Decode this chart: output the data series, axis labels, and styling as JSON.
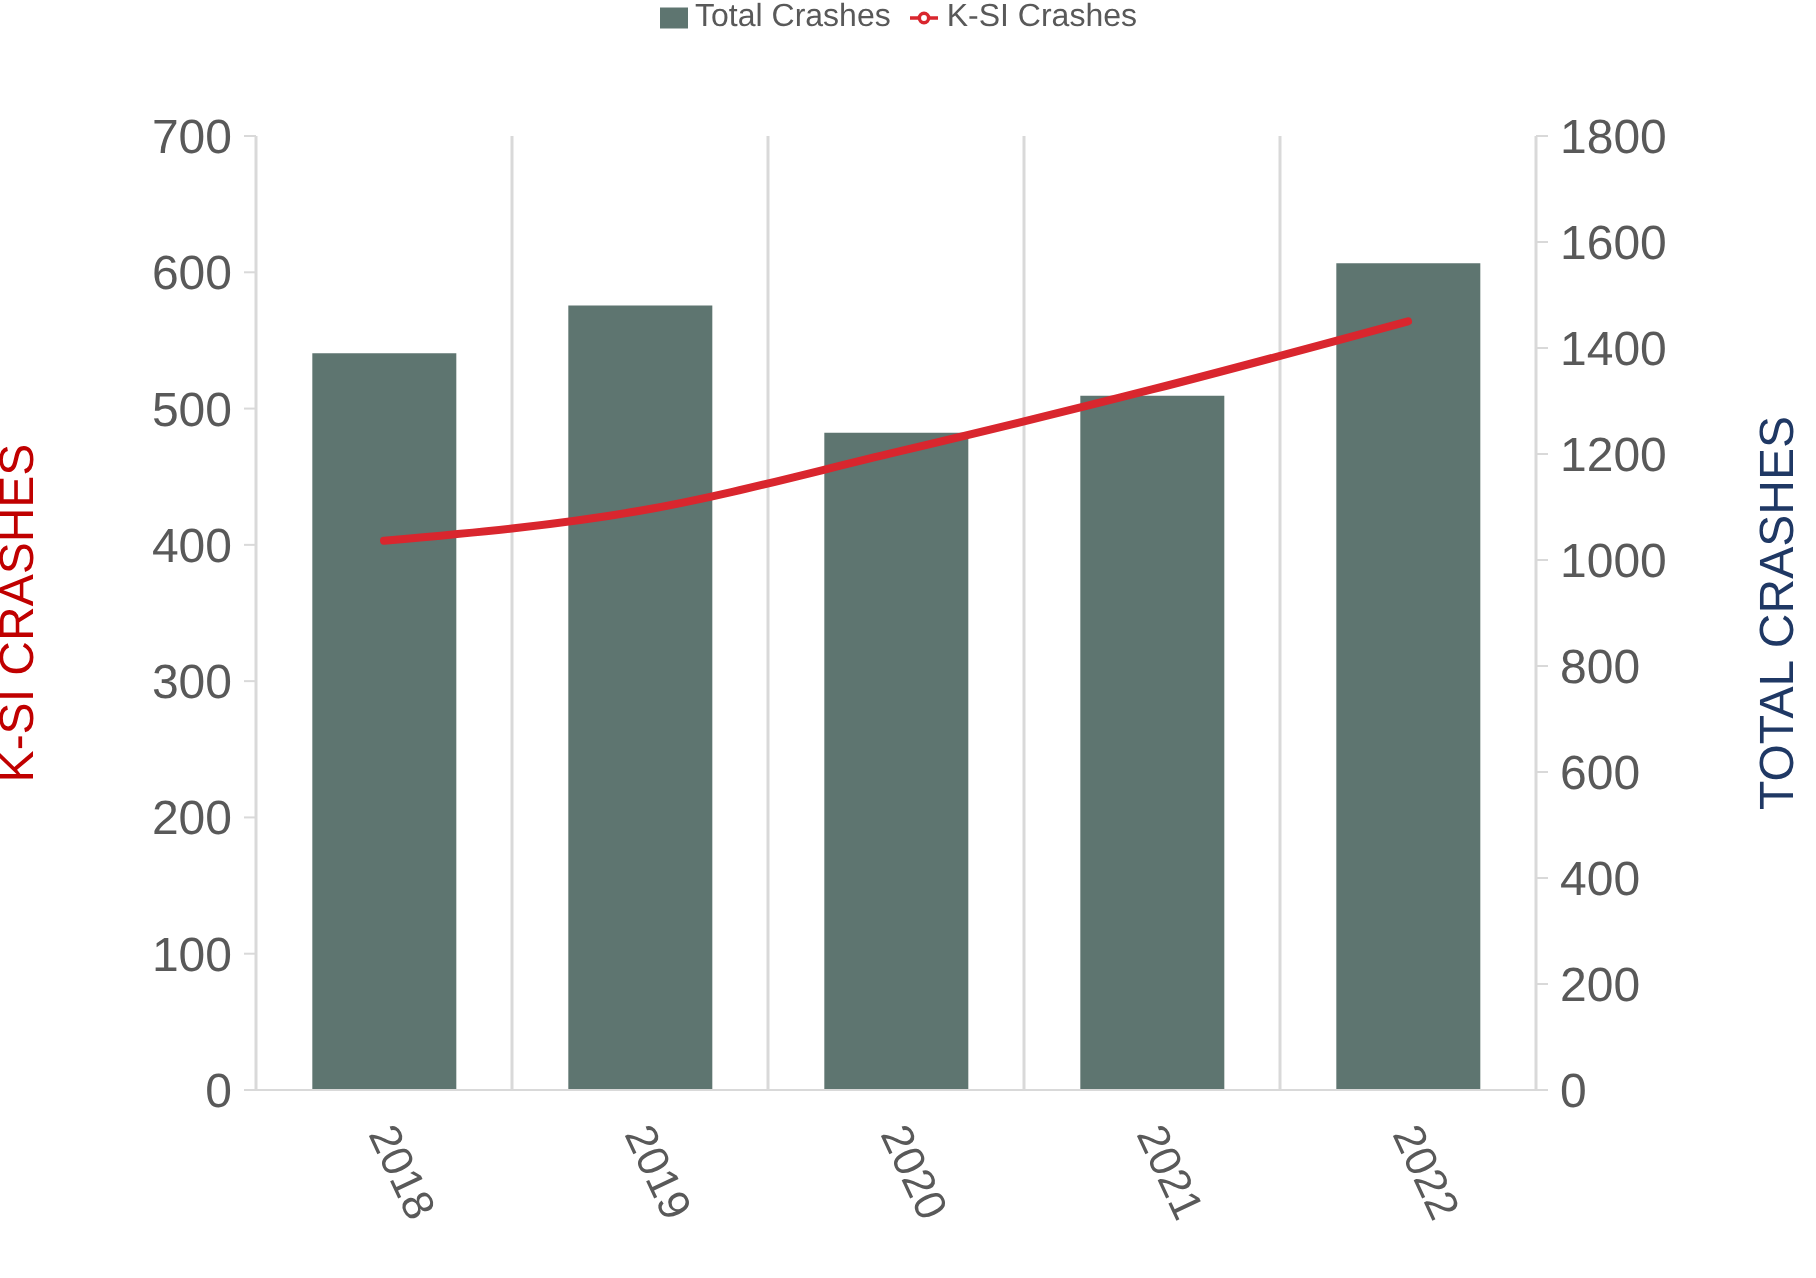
{
  "chart_data": {
    "type": "bar",
    "categories": [
      "2018",
      "2019",
      "2020",
      "2021",
      "2022"
    ],
    "series": [
      {
        "name": "Total Crashes",
        "axis": "y2",
        "color": "#5e7570",
        "values": [
          1390,
          1480,
          1240,
          1310,
          1560
        ]
      },
      {
        "name": "K-SI Crashes",
        "type": "line",
        "axis": "y",
        "color": "#d9262e",
        "values": [
          403,
          425,
          468,
          514,
          564
        ]
      }
    ],
    "ylabel": "K-SI CRASHES",
    "y2label": "TOTAL CRASHES",
    "ylim": [
      0,
      700
    ],
    "yticks": [
      0,
      100,
      200,
      300,
      400,
      500,
      600,
      700
    ],
    "y2lim": [
      0,
      1800
    ],
    "y2ticks": [
      0,
      200,
      400,
      600,
      800,
      1000,
      1200,
      1400,
      1600,
      1800
    ],
    "grid": "x",
    "legend": "top",
    "marker": "none",
    "line_style": "solid"
  }
}
